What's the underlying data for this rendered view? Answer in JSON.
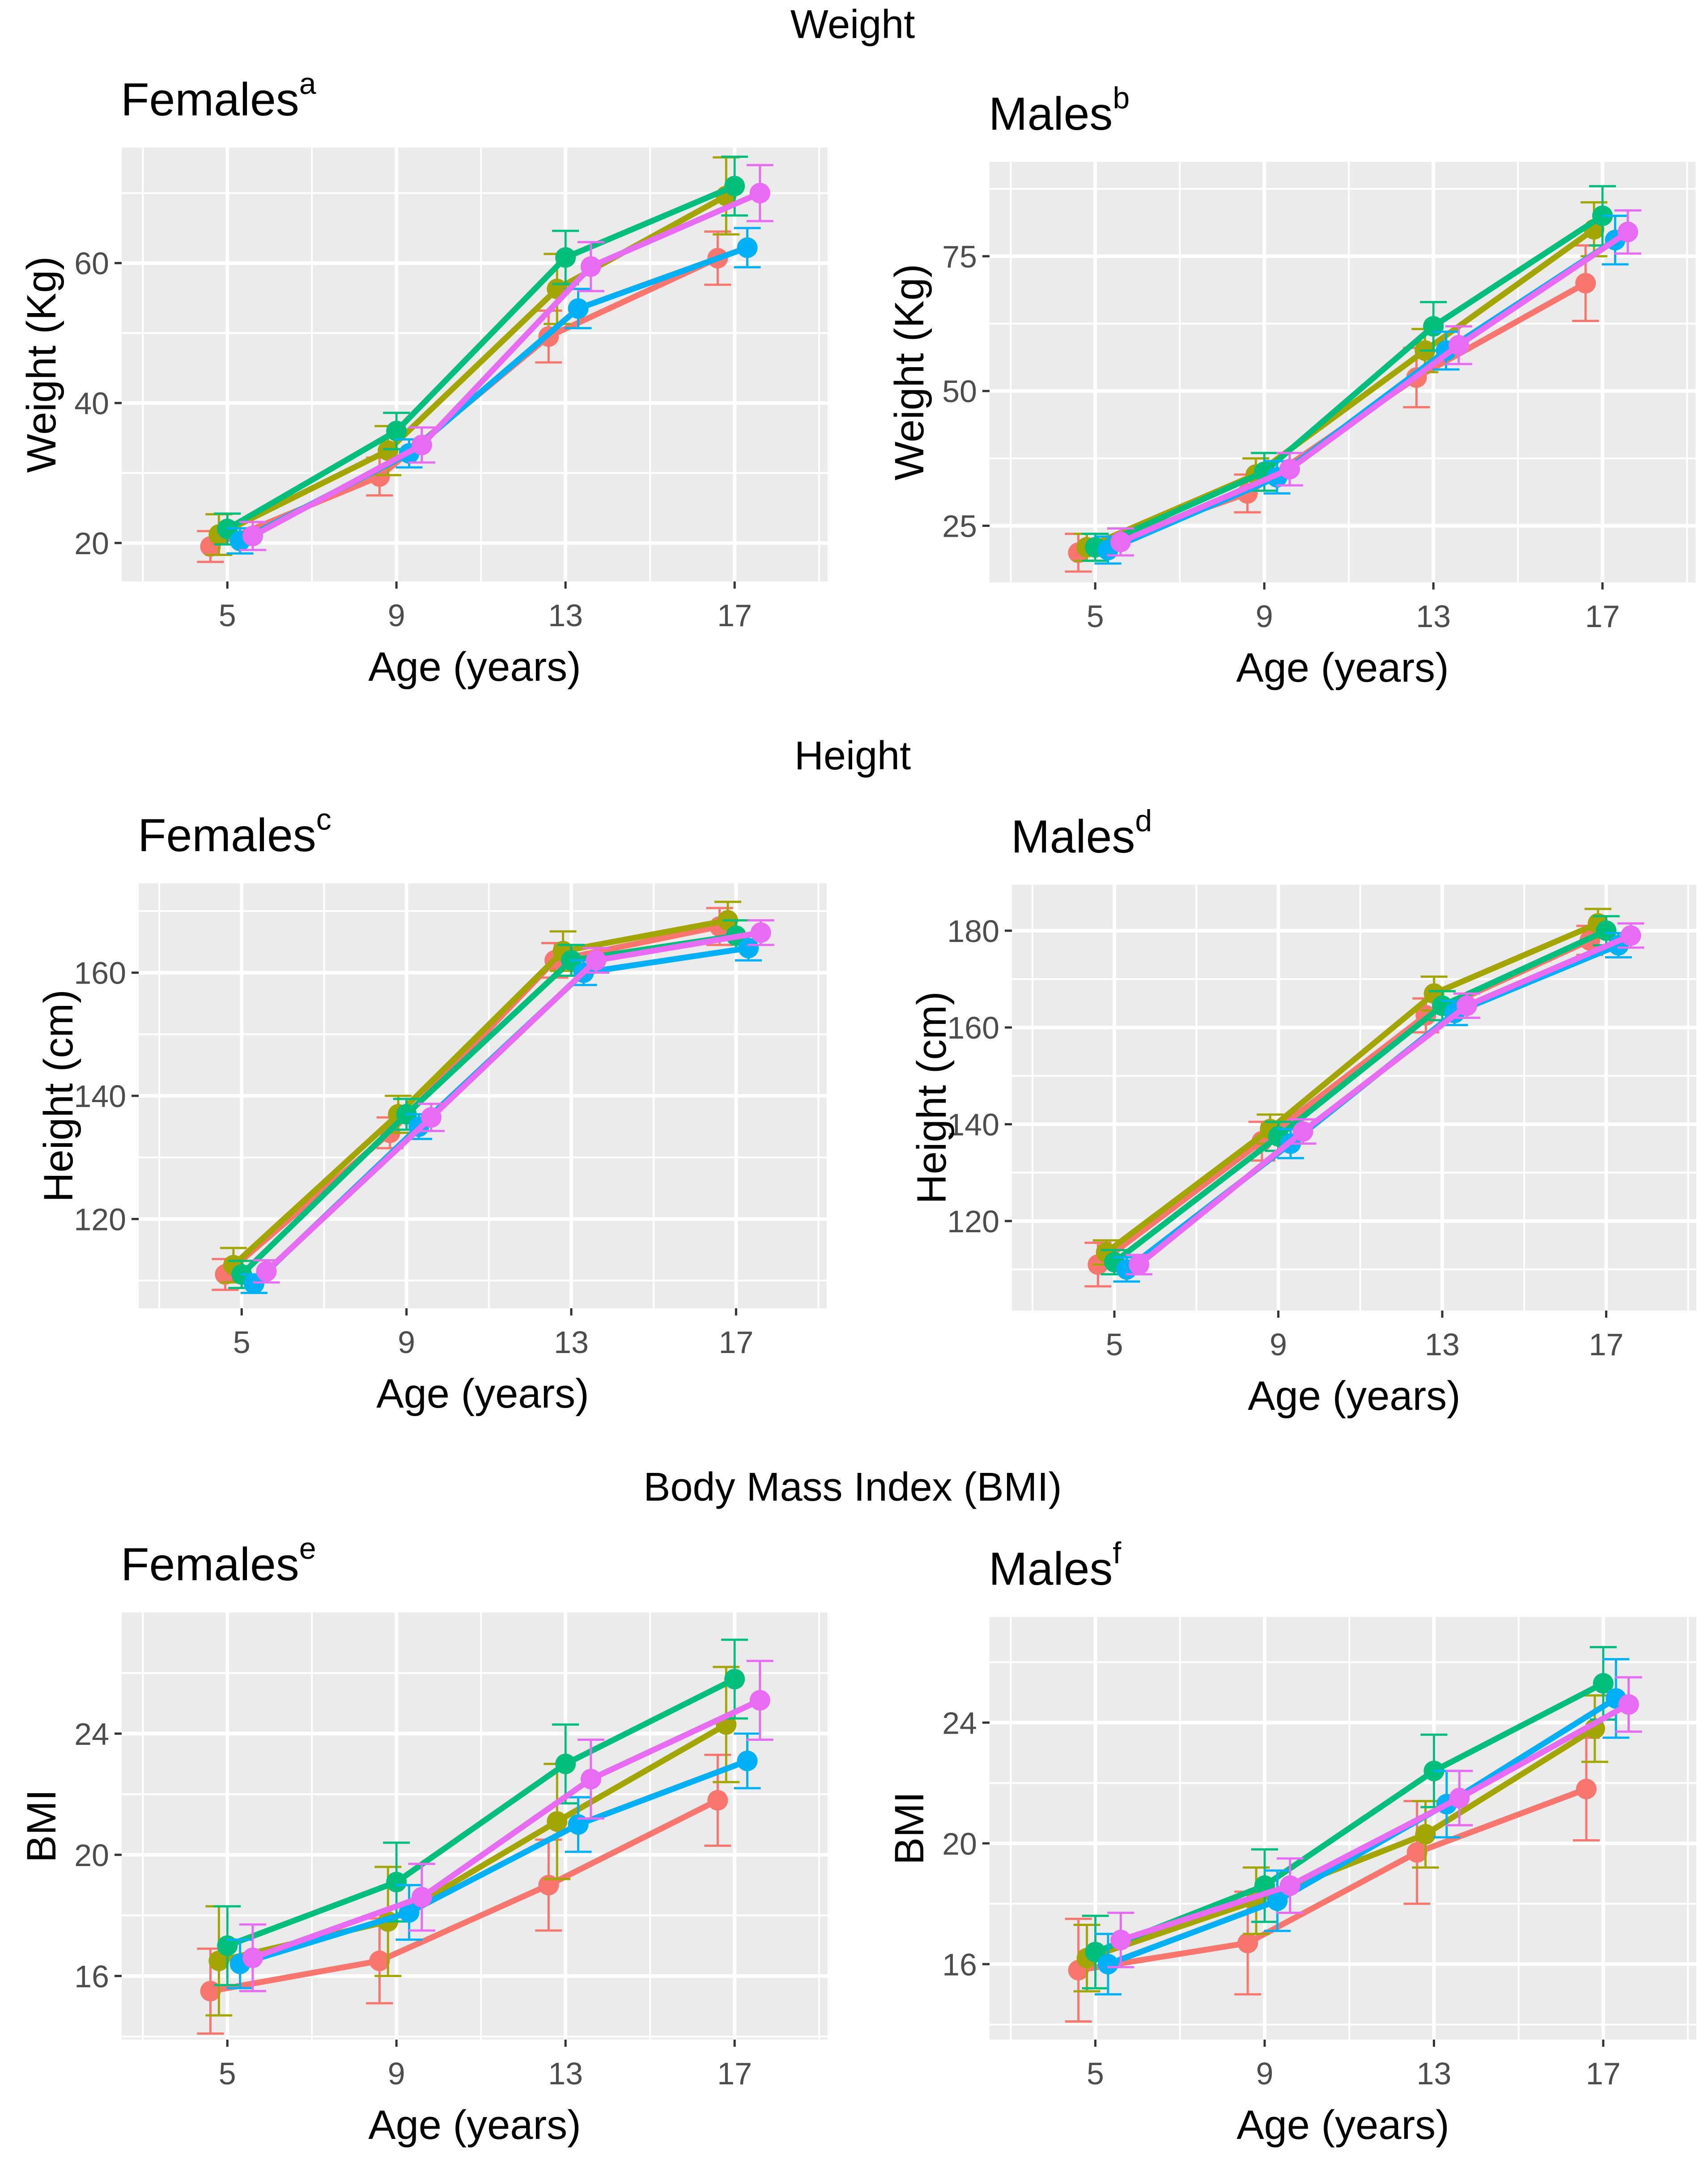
{
  "sections": [
    {
      "title": "Weight"
    },
    {
      "title": "Height"
    },
    {
      "title": "Body Mass Index (BMI)"
    }
  ],
  "series_colors": [
    "#F8766D",
    "#A3A500",
    "#00BF7D",
    "#00B0F6",
    "#E76BF3"
  ],
  "chart_data": [
    {
      "type": "line",
      "title": "Females",
      "title_superscript": "a",
      "xlabel": "Age (years)",
      "ylabel": "Weight (Kg)",
      "x_ticks": [
        5,
        9,
        13,
        17
      ],
      "y_ticks": [
        20,
        40,
        60
      ],
      "xlim": [
        2.5,
        19.2
      ],
      "ylim": [
        14.5,
        76.5
      ],
      "series": [
        {
          "x": [
            4.6,
            8.6,
            12.6,
            16.6
          ],
          "y": [
            19.5,
            29.5,
            49.5,
            60.7
          ],
          "err": [
            2.2,
            2.7,
            3.7,
            3.8
          ]
        },
        {
          "x": [
            4.8,
            8.8,
            12.8,
            16.8
          ],
          "y": [
            21.2,
            33.2,
            56.3,
            69.6
          ],
          "err": [
            2.9,
            3.5,
            5.0,
            5.5
          ]
        },
        {
          "x": [
            5.0,
            9.0,
            13.0,
            17.0
          ],
          "y": [
            22.0,
            36.0,
            60.8,
            71.0
          ],
          "err": [
            2.2,
            2.6,
            3.8,
            4.2
          ]
        },
        {
          "x": [
            5.3,
            9.3,
            13.3,
            17.3
          ],
          "y": [
            20.3,
            32.8,
            53.5,
            62.2
          ],
          "err": [
            1.8,
            2.0,
            2.8,
            2.8
          ]
        },
        {
          "x": [
            5.6,
            9.6,
            13.6,
            17.6
          ],
          "y": [
            21.0,
            34.0,
            59.5,
            70.0
          ],
          "err": [
            2.0,
            2.5,
            3.5,
            4.0
          ]
        }
      ]
    },
    {
      "type": "line",
      "title": "Males",
      "title_superscript": "b",
      "xlabel": "Age (years)",
      "ylabel": "Weight (Kg)",
      "x_ticks": [
        5,
        9,
        13,
        17
      ],
      "y_ticks": [
        25,
        50,
        75
      ],
      "xlim": [
        2.5,
        19.2
      ],
      "ylim": [
        14.5,
        92.5
      ],
      "series": [
        {
          "x": [
            4.6,
            8.6,
            12.6,
            16.6
          ],
          "y": [
            20.0,
            31.0,
            52.5,
            70.0
          ],
          "err": [
            3.5,
            3.5,
            5.5,
            7.0
          ]
        },
        {
          "x": [
            4.8,
            8.8,
            12.8,
            16.8
          ],
          "y": [
            21.0,
            34.5,
            57.5,
            80.0
          ],
          "err": [
            2.5,
            3.0,
            4.0,
            5.0
          ]
        },
        {
          "x": [
            5.0,
            9.0,
            13.0,
            17.0
          ],
          "y": [
            21.0,
            35.0,
            62.0,
            82.5
          ],
          "err": [
            2.5,
            3.5,
            4.5,
            5.5
          ]
        },
        {
          "x": [
            5.3,
            9.3,
            13.3,
            17.3
          ],
          "y": [
            20.5,
            34.0,
            57.5,
            78.0
          ],
          "err": [
            2.5,
            3.0,
            3.5,
            4.5
          ]
        },
        {
          "x": [
            5.6,
            9.6,
            13.6,
            17.6
          ],
          "y": [
            22.0,
            35.5,
            58.5,
            79.5
          ],
          "err": [
            2.5,
            3.0,
            3.5,
            4.0
          ]
        }
      ]
    },
    {
      "type": "line",
      "title": "Females",
      "title_superscript": "c",
      "xlabel": "Age (years)",
      "ylabel": "Height (cm)",
      "x_ticks": [
        5,
        9,
        13,
        17
      ],
      "y_ticks": [
        120,
        140,
        160
      ],
      "xlim": [
        2.5,
        19.2
      ],
      "ylim": [
        105.5,
        174.5
      ],
      "series": [
        {
          "x": [
            4.6,
            8.6,
            12.6,
            16.6
          ],
          "y": [
            111.0,
            134.0,
            162.0,
            167.5
          ],
          "err": [
            2.5,
            2.5,
            2.8,
            3.0
          ]
        },
        {
          "x": [
            4.8,
            8.8,
            12.8,
            16.8
          ],
          "y": [
            112.5,
            137.0,
            163.5,
            168.5
          ],
          "err": [
            2.8,
            3.0,
            3.2,
            3.0
          ]
        },
        {
          "x": [
            5.0,
            9.0,
            13.0,
            17.0
          ],
          "y": [
            111.0,
            137.0,
            162.0,
            166.0
          ],
          "err": [
            2.2,
            2.5,
            2.5,
            2.5
          ]
        },
        {
          "x": [
            5.3,
            9.3,
            13.3,
            17.3
          ],
          "y": [
            109.5,
            135.0,
            160.0,
            164.0
          ],
          "err": [
            1.5,
            2.0,
            2.0,
            2.0
          ]
        },
        {
          "x": [
            5.6,
            9.6,
            13.6,
            17.6
          ],
          "y": [
            111.5,
            136.5,
            162.0,
            166.5
          ],
          "err": [
            1.8,
            2.2,
            2.0,
            2.0
          ]
        }
      ]
    },
    {
      "type": "line",
      "title": "Males",
      "title_superscript": "d",
      "xlabel": "Age (years)",
      "ylabel": "Height (cm)",
      "x_ticks": [
        5,
        9,
        13,
        17
      ],
      "y_ticks": [
        120,
        140,
        160,
        180
      ],
      "xlim": [
        2.5,
        19.2
      ],
      "ylim": [
        101.5,
        189.5
      ],
      "series": [
        {
          "x": [
            4.6,
            8.6,
            12.6,
            16.6
          ],
          "y": [
            111.0,
            136.5,
            162.5,
            178.0
          ],
          "err": [
            4.5,
            4.0,
            3.5,
            3.0
          ]
        },
        {
          "x": [
            4.8,
            8.8,
            12.8,
            16.8
          ],
          "y": [
            113.5,
            139.0,
            167.0,
            181.5
          ],
          "err": [
            2.5,
            3.0,
            3.5,
            3.0
          ]
        },
        {
          "x": [
            5.0,
            9.0,
            13.0,
            17.0
          ],
          "y": [
            111.5,
            137.5,
            164.5,
            180.0
          ],
          "err": [
            2.5,
            3.0,
            3.0,
            3.0
          ]
        },
        {
          "x": [
            5.3,
            9.3,
            13.3,
            17.3
          ],
          "y": [
            110.0,
            136.0,
            163.0,
            177.0
          ],
          "err": [
            2.5,
            3.0,
            2.5,
            2.5
          ]
        },
        {
          "x": [
            5.6,
            9.6,
            13.6,
            17.6
          ],
          "y": [
            111.0,
            138.5,
            164.5,
            179.0
          ],
          "err": [
            2.0,
            2.5,
            2.5,
            2.5
          ]
        }
      ]
    },
    {
      "type": "line",
      "title": "Females",
      "title_superscript": "e",
      "xlabel": "Age (years)",
      "ylabel": "BMI",
      "x_ticks": [
        5,
        9,
        13,
        17
      ],
      "y_ticks": [
        16,
        20,
        24
      ],
      "xlim": [
        2.5,
        19.2
      ],
      "ylim": [
        13.9,
        28.0
      ],
      "series": [
        {
          "x": [
            4.6,
            8.6,
            12.6,
            16.6
          ],
          "y": [
            15.5,
            16.5,
            19.0,
            21.8
          ],
          "err": [
            1.4,
            1.4,
            1.5,
            1.5
          ]
        },
        {
          "x": [
            4.8,
            8.8,
            12.8,
            16.8
          ],
          "y": [
            16.5,
            17.8,
            21.1,
            24.3
          ],
          "err": [
            1.8,
            1.8,
            1.9,
            1.9
          ]
        },
        {
          "x": [
            5.0,
            9.0,
            13.0,
            17.0
          ],
          "y": [
            17.0,
            19.1,
            23.0,
            25.8
          ],
          "err": [
            1.3,
            1.3,
            1.3,
            1.3
          ]
        },
        {
          "x": [
            5.3,
            9.3,
            13.3,
            17.3
          ],
          "y": [
            16.4,
            18.1,
            21.0,
            23.1
          ],
          "err": [
            0.8,
            0.9,
            0.9,
            0.9
          ]
        },
        {
          "x": [
            5.6,
            9.6,
            13.6,
            17.6
          ],
          "y": [
            16.6,
            18.6,
            22.5,
            25.1
          ],
          "err": [
            1.1,
            1.1,
            1.3,
            1.3
          ]
        }
      ]
    },
    {
      "type": "line",
      "title": "Males",
      "title_superscript": "f",
      "xlabel": "Age (years)",
      "ylabel": "BMI",
      "x_ticks": [
        5,
        9,
        13,
        17
      ],
      "y_ticks": [
        16,
        20,
        24
      ],
      "xlim": [
        2.5,
        19.2
      ],
      "ylim": [
        13.5,
        27.5
      ],
      "series": [
        {
          "x": [
            4.6,
            8.6,
            12.6,
            16.6
          ],
          "y": [
            15.8,
            16.7,
            19.7,
            21.8
          ],
          "err": [
            1.7,
            1.7,
            1.7,
            1.7
          ]
        },
        {
          "x": [
            4.8,
            8.8,
            12.8,
            16.8
          ],
          "y": [
            16.2,
            18.1,
            20.3,
            23.8
          ],
          "err": [
            1.1,
            1.1,
            1.1,
            1.1
          ]
        },
        {
          "x": [
            5.0,
            9.0,
            13.0,
            17.0
          ],
          "y": [
            16.4,
            18.6,
            22.4,
            25.3
          ],
          "err": [
            1.2,
            1.2,
            1.2,
            1.2
          ]
        },
        {
          "x": [
            5.3,
            9.3,
            13.3,
            17.3
          ],
          "y": [
            16.0,
            18.1,
            21.3,
            24.8
          ],
          "err": [
            1.0,
            1.0,
            1.1,
            1.3
          ]
        },
        {
          "x": [
            5.6,
            9.6,
            13.6,
            17.6
          ],
          "y": [
            16.8,
            18.6,
            21.5,
            24.6
          ],
          "err": [
            0.9,
            0.9,
            0.9,
            0.9
          ]
        }
      ]
    }
  ]
}
